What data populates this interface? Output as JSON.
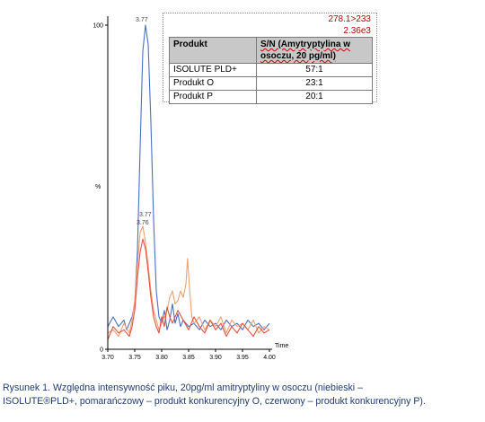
{
  "chart_data": {
    "type": "line",
    "title": "",
    "xlabel": "Time",
    "ylabel": "%",
    "xlim": [
      3.7,
      4.0
    ],
    "ylim": [
      0,
      100
    ],
    "x_ticks": [
      "3.70",
      "3.75",
      "3.80",
      "3.85",
      "3.90",
      "3.95",
      "4.00"
    ],
    "y_ticks": [
      "0",
      "100"
    ],
    "peak_labels": [
      "3.77",
      "3.77",
      "3.76"
    ],
    "series": [
      {
        "color": "#4a6fc4",
        "points": [
          [
            3.7,
            7
          ],
          [
            3.71,
            10
          ],
          [
            3.72,
            7
          ],
          [
            3.73,
            9
          ],
          [
            3.735,
            6
          ],
          [
            3.74,
            8
          ],
          [
            3.745,
            10
          ],
          [
            3.75,
            14
          ],
          [
            3.755,
            30
          ],
          [
            3.76,
            62
          ],
          [
            3.765,
            92
          ],
          [
            3.77,
            100
          ],
          [
            3.775,
            94
          ],
          [
            3.78,
            70
          ],
          [
            3.785,
            40
          ],
          [
            3.79,
            18
          ],
          [
            3.795,
            10
          ],
          [
            3.8,
            8
          ],
          [
            3.805,
            12
          ],
          [
            3.81,
            6
          ],
          [
            3.815,
            9
          ],
          [
            3.82,
            14
          ],
          [
            3.825,
            8
          ],
          [
            3.83,
            11
          ],
          [
            3.835,
            7
          ],
          [
            3.84,
            9
          ],
          [
            3.85,
            7
          ],
          [
            3.86,
            8
          ],
          [
            3.87,
            6
          ],
          [
            3.88,
            9
          ],
          [
            3.89,
            7
          ],
          [
            3.9,
            8
          ],
          [
            3.91,
            6
          ],
          [
            3.92,
            9
          ],
          [
            3.93,
            7
          ],
          [
            3.94,
            8
          ],
          [
            3.95,
            6
          ],
          [
            3.96,
            9
          ],
          [
            3.97,
            7
          ],
          [
            3.98,
            8
          ],
          [
            3.99,
            6
          ],
          [
            4.0,
            8
          ]
        ]
      },
      {
        "color": "#f0a070",
        "points": [
          [
            3.7,
            5
          ],
          [
            3.71,
            6
          ],
          [
            3.72,
            4
          ],
          [
            3.73,
            8
          ],
          [
            3.74,
            5
          ],
          [
            3.745,
            9
          ],
          [
            3.75,
            15
          ],
          [
            3.755,
            26
          ],
          [
            3.76,
            36
          ],
          [
            3.765,
            38
          ],
          [
            3.77,
            33
          ],
          [
            3.775,
            26
          ],
          [
            3.78,
            18
          ],
          [
            3.785,
            12
          ],
          [
            3.79,
            9
          ],
          [
            3.795,
            6
          ],
          [
            3.8,
            8
          ],
          [
            3.81,
            12
          ],
          [
            3.815,
            16
          ],
          [
            3.82,
            18
          ],
          [
            3.825,
            14
          ],
          [
            3.83,
            15
          ],
          [
            3.835,
            18
          ],
          [
            3.84,
            16
          ],
          [
            3.845,
            20
          ],
          [
            3.848,
            28
          ],
          [
            3.852,
            18
          ],
          [
            3.856,
            10
          ],
          [
            3.86,
            8
          ],
          [
            3.87,
            10
          ],
          [
            3.88,
            6
          ],
          [
            3.89,
            9
          ],
          [
            3.9,
            7
          ],
          [
            3.91,
            10
          ],
          [
            3.92,
            5
          ],
          [
            3.93,
            9
          ],
          [
            3.94,
            7
          ],
          [
            3.95,
            8
          ],
          [
            3.96,
            6
          ],
          [
            3.97,
            9
          ],
          [
            3.98,
            5
          ],
          [
            3.99,
            7
          ],
          [
            4.0,
            6
          ]
        ]
      },
      {
        "color": "#e8503c",
        "points": [
          [
            3.7,
            3
          ],
          [
            3.71,
            7
          ],
          [
            3.72,
            5
          ],
          [
            3.73,
            6
          ],
          [
            3.74,
            4
          ],
          [
            3.745,
            7
          ],
          [
            3.75,
            12
          ],
          [
            3.755,
            22
          ],
          [
            3.76,
            30
          ],
          [
            3.765,
            34
          ],
          [
            3.77,
            31
          ],
          [
            3.775,
            24
          ],
          [
            3.78,
            16
          ],
          [
            3.785,
            10
          ],
          [
            3.79,
            7
          ],
          [
            3.795,
            5
          ],
          [
            3.8,
            10
          ],
          [
            3.805,
            7
          ],
          [
            3.81,
            13
          ],
          [
            3.815,
            10
          ],
          [
            3.82,
            8
          ],
          [
            3.83,
            12
          ],
          [
            3.84,
            9
          ],
          [
            3.85,
            6
          ],
          [
            3.86,
            10
          ],
          [
            3.87,
            7
          ],
          [
            3.88,
            5
          ],
          [
            3.89,
            9
          ],
          [
            3.9,
            6
          ],
          [
            3.91,
            8
          ],
          [
            3.92,
            4
          ],
          [
            3.93,
            7
          ],
          [
            3.94,
            5
          ],
          [
            3.95,
            8
          ],
          [
            3.96,
            6
          ],
          [
            3.97,
            4
          ],
          [
            3.98,
            7
          ],
          [
            3.99,
            5
          ],
          [
            4.0,
            6
          ]
        ]
      }
    ]
  },
  "annotation": {
    "transition": "278.1>233",
    "intensity": "2.36e3"
  },
  "table": {
    "headers": [
      "Produkt",
      "S/N (Amytryptylina w osoczu, 20 pg/ml)"
    ],
    "rows": [
      [
        "ISOLUTE PLD+",
        "57:1"
      ],
      [
        "Produkt O",
        "23:1"
      ],
      [
        "Produkt P",
        "20:1"
      ]
    ]
  },
  "caption": {
    "line1": "Rysunek 1. Względna intensywność piku, 20pg/ml amitryptyliny w osoczu (niebieski –",
    "line2": "ISOLUTE®PLD+, pomarańczowy – produkt konkurencyjny O, czerwony – produkt konkurencyjny P)."
  }
}
